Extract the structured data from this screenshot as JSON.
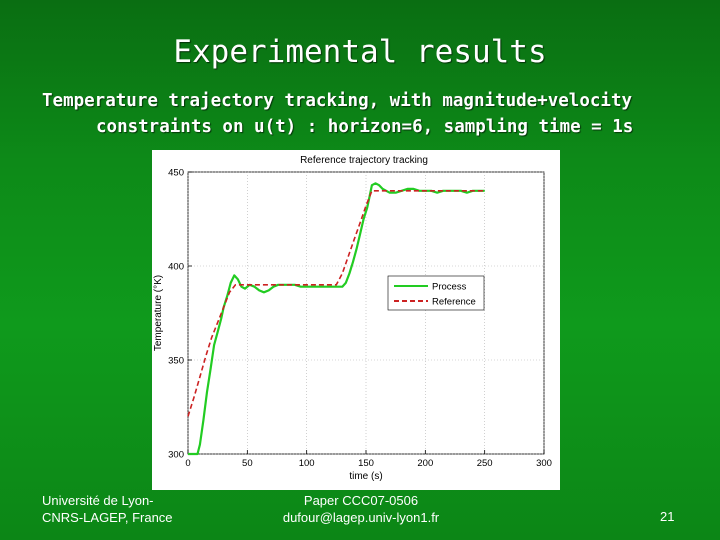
{
  "slide": {
    "title": "Experimental results",
    "subtitle_line1": "Temperature trajectory tracking, with magnitude+velocity",
    "subtitle_line2": "constraints on u(t) : horizon=6, sampling time = 1s"
  },
  "footer": {
    "institution_line1": "Université de Lyon-",
    "institution_line2": "CNRS-LAGEP, France",
    "paper_line1": "Paper CCC07-0506",
    "paper_line2": "dufour@lagep.univ-lyon1.fr",
    "page_number": "21"
  },
  "colors": {
    "process": "#22cc22",
    "reference": "#cc2222",
    "grid": "#b0b0b0",
    "axis": "#000000"
  },
  "chart_data": {
    "type": "line",
    "title": "Reference trajectory tracking",
    "xlabel": "time (s)",
    "ylabel": "Temperature (°K)",
    "xlim": [
      0,
      300
    ],
    "ylim": [
      300,
      450
    ],
    "xticks": [
      0,
      50,
      100,
      150,
      200,
      250,
      300
    ],
    "yticks": [
      300,
      350,
      400,
      450
    ],
    "grid": true,
    "legend_position": "right",
    "series": [
      {
        "name": "Process",
        "color": "#22cc22",
        "style": "solid",
        "x": [
          0,
          8,
          10,
          13,
          16,
          19,
          22,
          25,
          28,
          30,
          33,
          36,
          39,
          42,
          45,
          48,
          52,
          56,
          60,
          64,
          68,
          72,
          76,
          80,
          85,
          90,
          95,
          100,
          105,
          110,
          115,
          120,
          125,
          130,
          133,
          136,
          139,
          142,
          145,
          148,
          151,
          153,
          155,
          158,
          161,
          164,
          167,
          170,
          175,
          180,
          185,
          190,
          195,
          200,
          205,
          210,
          215,
          220,
          225,
          230,
          235,
          240,
          245,
          250
        ],
        "y": [
          300,
          300,
          305,
          318,
          333,
          345,
          358,
          365,
          372,
          378,
          384,
          391,
          395,
          393,
          389,
          388,
          390,
          389,
          387,
          386,
          387,
          389,
          390,
          390,
          390,
          390,
          389,
          389,
          389,
          389,
          389,
          389,
          389,
          389,
          391,
          396,
          402,
          409,
          417,
          425,
          431,
          437,
          443,
          444,
          443,
          441,
          440,
          439,
          439,
          440,
          441,
          441,
          440,
          440,
          440,
          439,
          440,
          440,
          440,
          440,
          439,
          440,
          440,
          440
        ]
      },
      {
        "name": "Reference",
        "color": "#cc2222",
        "style": "dashed",
        "x": [
          0,
          5,
          10,
          15,
          20,
          25,
          30,
          35,
          40,
          45,
          50,
          60,
          70,
          80,
          90,
          100,
          110,
          120,
          125,
          130,
          135,
          140,
          145,
          150,
          155,
          160,
          170,
          180,
          190,
          200,
          210,
          220,
          230,
          240,
          250
        ],
        "y": [
          320,
          330,
          341,
          352,
          362,
          370,
          378,
          386,
          390,
          390,
          390,
          390,
          390,
          390,
          390,
          390,
          390,
          390,
          390,
          396,
          405,
          414,
          423,
          432,
          440,
          440,
          440,
          440,
          440,
          440,
          440,
          440,
          440,
          440,
          440
        ]
      }
    ]
  }
}
